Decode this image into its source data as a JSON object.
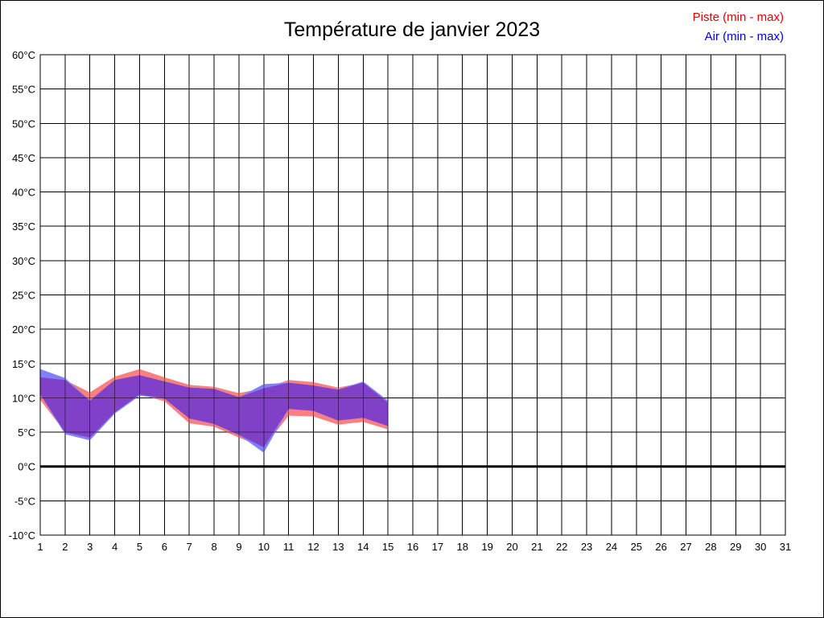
{
  "title": "Température de janvier 2023",
  "legend": {
    "piste_label": "Piste (min - max)",
    "air_label": "Air (min - max)"
  },
  "colors": {
    "piste_band": "#FA8080",
    "air_band": "#8080FA",
    "overlap_band": "#8040C8",
    "piste_legend": "#E00000",
    "air_legend": "#0000DD",
    "axis": "#000000"
  },
  "chart_data": {
    "type": "area",
    "title": "Température de janvier 2023",
    "xlabel": "",
    "ylabel": "",
    "xlim": [
      1,
      31
    ],
    "ylim": [
      -10,
      60
    ],
    "grid": true,
    "legend_position": "top-right",
    "x_ticks": [
      "1",
      "2",
      "3",
      "4",
      "5",
      "6",
      "7",
      "8",
      "9",
      "10",
      "11",
      "12",
      "13",
      "14",
      "15",
      "16",
      "17",
      "18",
      "19",
      "20",
      "21",
      "22",
      "23",
      "24",
      "25",
      "26",
      "27",
      "28",
      "29",
      "30",
      "31"
    ],
    "y_ticks": [
      {
        "value": 60,
        "label": "60°C"
      },
      {
        "value": 55,
        "label": "55°C"
      },
      {
        "value": 50,
        "label": "50°C"
      },
      {
        "value": 45,
        "label": "45°C"
      },
      {
        "value": 40,
        "label": "40°C"
      },
      {
        "value": 35,
        "label": "35°C"
      },
      {
        "value": 30,
        "label": "30°C"
      },
      {
        "value": 25,
        "label": "25°C"
      },
      {
        "value": 20,
        "label": "20°C"
      },
      {
        "value": 15,
        "label": "15°C"
      },
      {
        "value": 10,
        "label": "10°C"
      },
      {
        "value": 5,
        "label": "5°C"
      },
      {
        "value": 0,
        "label": "0°C"
      },
      {
        "value": -5,
        "label": "-5°C"
      },
      {
        "value": -10,
        "label": "-10°C"
      }
    ],
    "days": [
      1,
      2,
      3,
      4,
      5,
      6,
      7,
      8,
      9,
      10,
      11,
      12,
      13,
      14,
      15
    ],
    "series": [
      {
        "name": "Piste (min - max)",
        "fill": "#FA8080",
        "min": [
          9.7,
          5.0,
          4.2,
          7.9,
          10.5,
          9.5,
          6.3,
          5.8,
          4.2,
          2.8,
          7.4,
          7.3,
          6.1,
          6.5,
          5.4
        ],
        "max": [
          13.0,
          12.6,
          10.8,
          13.1,
          14.2,
          13.0,
          11.9,
          11.6,
          10.7,
          11.4,
          12.6,
          12.3,
          11.5,
          12.2,
          9.3
        ]
      },
      {
        "name": "Air (min - max)",
        "fill": "#8080FA",
        "min": [
          10.5,
          4.7,
          3.8,
          7.7,
          10.3,
          9.9,
          7.0,
          6.2,
          4.6,
          2.0,
          8.4,
          8.1,
          6.7,
          7.1,
          5.9
        ],
        "max": [
          14.2,
          12.9,
          9.6,
          12.6,
          13.3,
          12.4,
          11.5,
          11.3,
          10.1,
          12.0,
          12.2,
          11.8,
          11.2,
          12.4,
          9.6
        ]
      }
    ],
    "overlap_fill": "#8040C8",
    "zero_line_value": 0
  }
}
